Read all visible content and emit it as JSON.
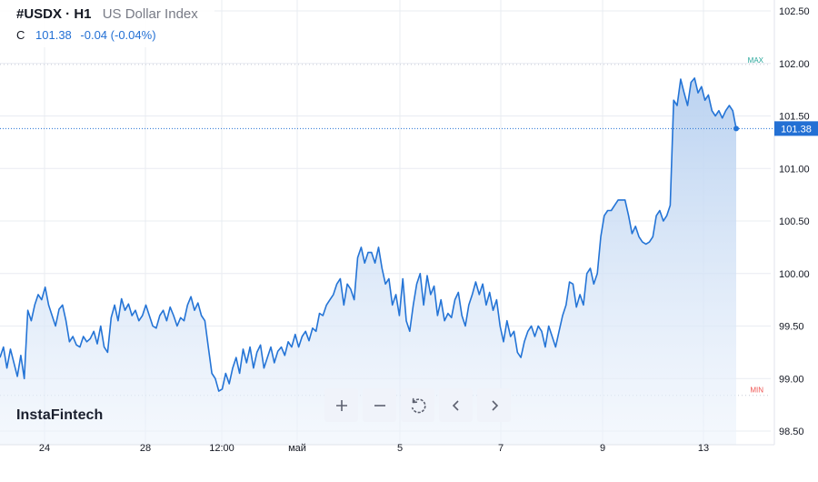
{
  "header": {
    "symbol": "#USDX · H1",
    "name": "US Dollar Index",
    "close_label": "C",
    "close_value": "101.38",
    "change_abs": "-0.04",
    "change_pct": "(-0.04%)"
  },
  "logo": {
    "text": "InstaFintech"
  },
  "toolbar": {
    "zoom_in": "plus-icon",
    "zoom_out": "minus-icon",
    "reset": "reset-icon",
    "scroll_left": "chevron-left-icon",
    "scroll_right": "chevron-right-icon"
  },
  "colors": {
    "line": "#2474d6",
    "area_top": "#b7d0f0",
    "area_bottom": "#eef4fc",
    "price_label_bg": "#2370d4",
    "max_label": "#26a69a",
    "min_label": "#ef5350",
    "grid": "#e9ecf2",
    "axis_text": "#131722"
  },
  "chart_data": {
    "type": "area",
    "y_range": [
      98.5,
      102.5
    ],
    "y_ticks": [
      "102.50",
      "102.00",
      "101.50",
      "101.00",
      "100.50",
      "100.00",
      "99.50",
      "99.00",
      "98.50"
    ],
    "x_ticks": [
      "24",
      "28",
      "12:00",
      "май",
      "5",
      "7",
      "9",
      "13"
    ],
    "last_price_label": "101.38",
    "max_label": "MAX",
    "min_label": "MIN",
    "max_level": 101.99,
    "min_level": 98.84,
    "grid": true,
    "series": [
      {
        "values": [
          99.2,
          99.3,
          99.1,
          99.28,
          99.15,
          99.02,
          99.22,
          99.0,
          99.65,
          99.55,
          99.7,
          99.8,
          99.75,
          99.87,
          99.7,
          99.6,
          99.5,
          99.66,
          99.7,
          99.55,
          99.35,
          99.4,
          99.32,
          99.3,
          99.4,
          99.35,
          99.38,
          99.45,
          99.33,
          99.5,
          99.3,
          99.25,
          99.58,
          99.7,
          99.55,
          99.76,
          99.65,
          99.71,
          99.6,
          99.65,
          99.55,
          99.6,
          99.7,
          99.6,
          99.5,
          99.48,
          99.6,
          99.65,
          99.55,
          99.68,
          99.6,
          99.5,
          99.58,
          99.55,
          99.7,
          99.78,
          99.65,
          99.72,
          99.6,
          99.55,
          99.3,
          99.05,
          99.0,
          98.88,
          98.9,
          99.05,
          98.95,
          99.1,
          99.2,
          99.05,
          99.28,
          99.15,
          99.3,
          99.1,
          99.25,
          99.32,
          99.1,
          99.2,
          99.3,
          99.15,
          99.26,
          99.3,
          99.22,
          99.35,
          99.3,
          99.42,
          99.3,
          99.4,
          99.45,
          99.36,
          99.48,
          99.45,
          99.62,
          99.6,
          99.7,
          99.75,
          99.8,
          99.9,
          99.95,
          99.7,
          99.9,
          99.85,
          99.75,
          100.15,
          100.25,
          100.1,
          100.2,
          100.2,
          100.1,
          100.25,
          100.05,
          99.9,
          99.95,
          99.7,
          99.8,
          99.6,
          99.95,
          99.55,
          99.45,
          99.7,
          99.9,
          100.0,
          99.7,
          99.98,
          99.8,
          99.88,
          99.6,
          99.75,
          99.55,
          99.62,
          99.58,
          99.75,
          99.82,
          99.6,
          99.5,
          99.7,
          99.8,
          99.92,
          99.8,
          99.9,
          99.7,
          99.82,
          99.65,
          99.75,
          99.5,
          99.35,
          99.55,
          99.4,
          99.45,
          99.25,
          99.2,
          99.35,
          99.45,
          99.5,
          99.4,
          99.5,
          99.45,
          99.3,
          99.5,
          99.4,
          99.3,
          99.45,
          99.6,
          99.7,
          99.92,
          99.9,
          99.68,
          99.8,
          99.7,
          100.0,
          100.05,
          99.9,
          100.0,
          100.35,
          100.55,
          100.6,
          100.6,
          100.65,
          100.7,
          100.7,
          100.7,
          100.55,
          100.38,
          100.45,
          100.35,
          100.3,
          100.28,
          100.3,
          100.35,
          100.55,
          100.6,
          100.5,
          100.55,
          100.65,
          101.65,
          101.6,
          101.85,
          101.72,
          101.6,
          101.82,
          101.86,
          101.72,
          101.78,
          101.65,
          101.7,
          101.55,
          101.5,
          101.55,
          101.48,
          101.55,
          101.6,
          101.55,
          101.38
        ]
      }
    ]
  }
}
